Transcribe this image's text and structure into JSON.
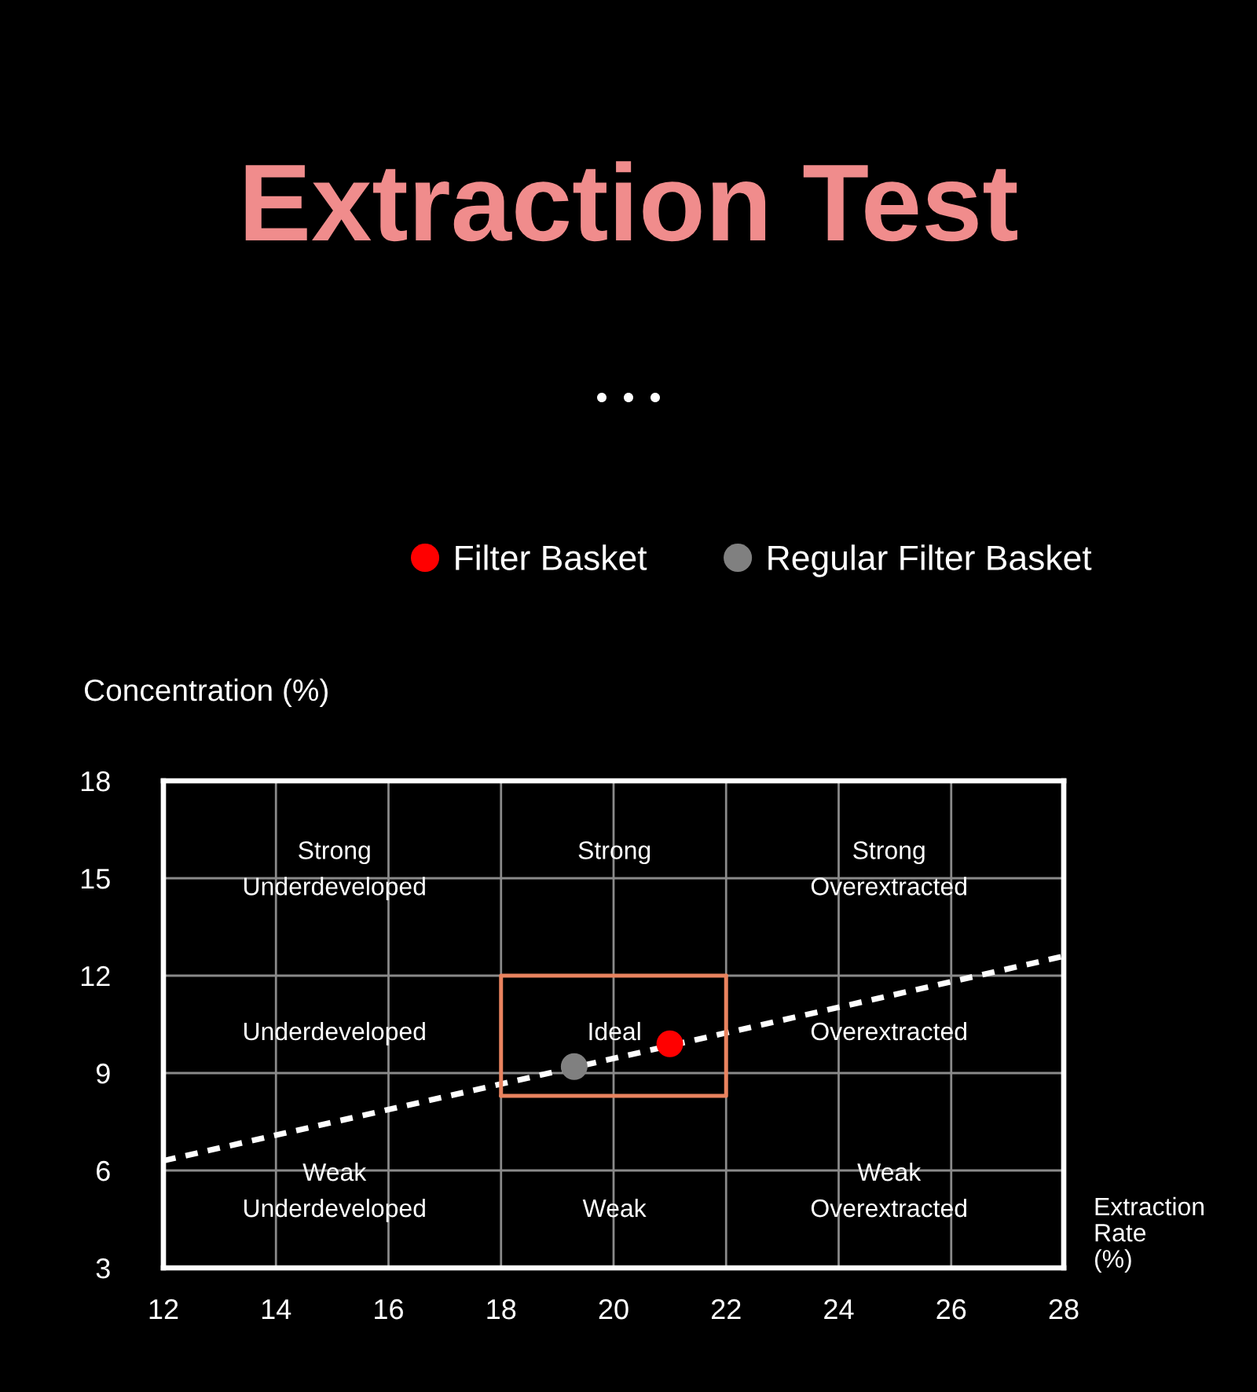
{
  "chart_data": {
    "type": "scatter",
    "title": "Extraction Test",
    "xlabel": "Extraction\nRate\n(%)",
    "ylabel": "Concentration (%)",
    "xlim": [
      12,
      28
    ],
    "ylim": [
      3,
      18
    ],
    "xticks": [
      12,
      14,
      16,
      18,
      20,
      22,
      24,
      26,
      28
    ],
    "yticks": [
      3,
      6,
      9,
      12,
      15,
      18
    ],
    "grid": true,
    "legend": "top",
    "series": [
      {
        "type": "line",
        "x": [
          12,
          28
        ],
        "values": [
          6.3,
          12.6
        ],
        "color": "#ffffff",
        "line_style": "dashed"
      },
      {
        "type": "line",
        "x": [
          18,
          18,
          22
        ],
        "values": [
          8.3,
          12,
          12
        ],
        "color": "#e9835f",
        "line_style": "solid"
      },
      {
        "type": "line",
        "x": [
          18,
          22,
          22
        ],
        "values": [
          8.3,
          8.3,
          12
        ],
        "color": "#e9835f",
        "line_style": "solid"
      },
      {
        "name": "Filter Basket",
        "x": [
          21.0
        ],
        "values": [
          9.9
        ],
        "color": "#ff0000",
        "marker": "circle"
      },
      {
        "name": "Regular Filter Basket",
        "x": [
          19.3
        ],
        "values": [
          9.2
        ],
        "color": "#808080",
        "marker": "circle"
      }
    ],
    "annotations": [
      "Strong\nUnderdeveloped",
      "Strong",
      "Strong\nOverextracted",
      "Underdeveloped",
      "Ideal",
      "Overextracted",
      "Weak\nUnderdeveloped",
      "Weak",
      "Weak\nOverextracted"
    ]
  }
}
